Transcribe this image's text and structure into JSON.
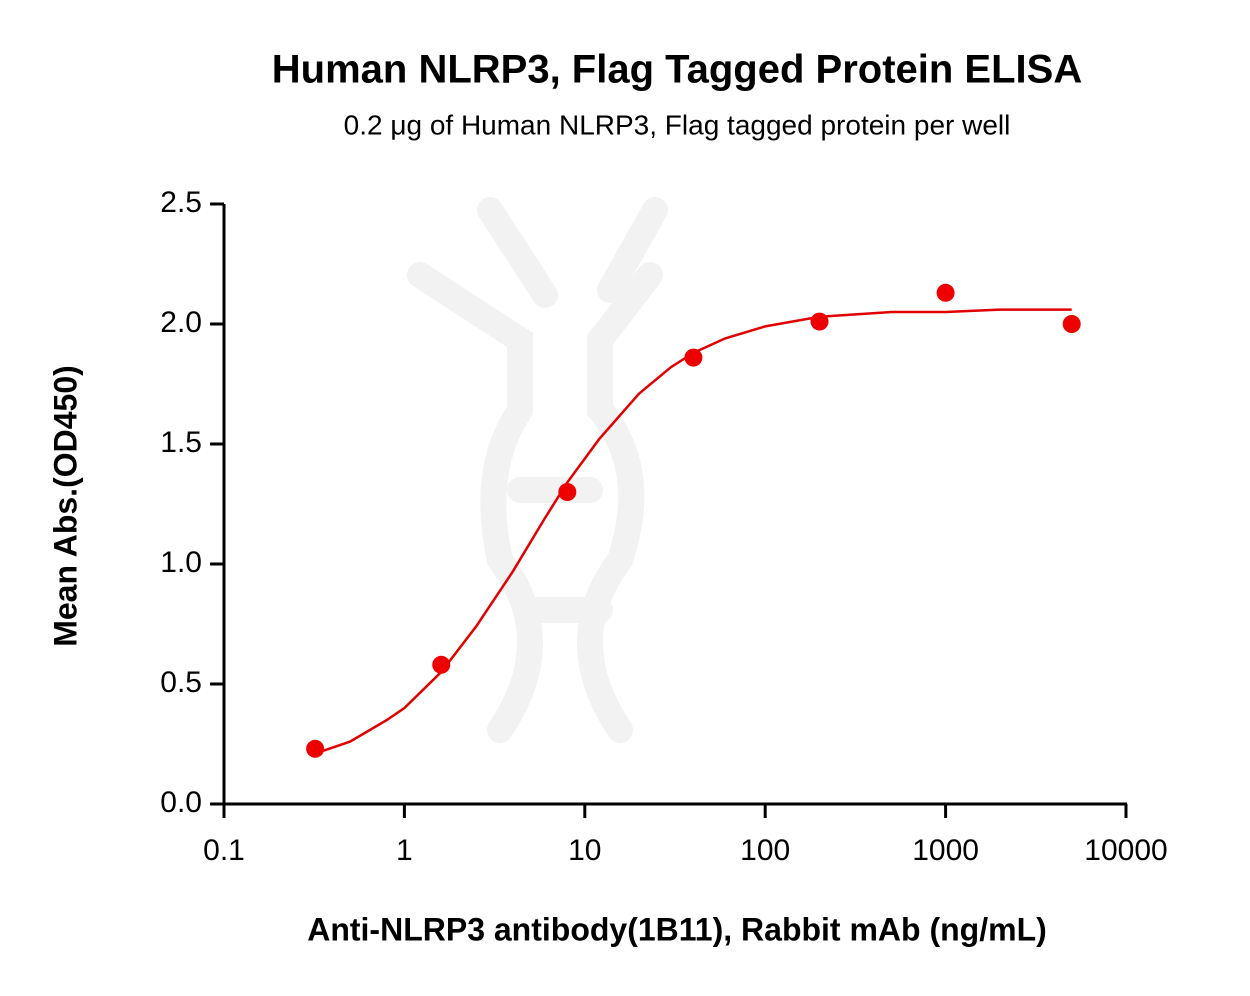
{
  "chart_data": {
    "type": "scatter",
    "title": "Human NLRP3, Flag Tagged Protein ELISA",
    "subtitle": "0.2 μg of Human NLRP3, Flag tagged protein per well",
    "x_label": "Anti-NLRP3 antibody(1B11), Rabbit mAb (ng/mL)",
    "y_label": "Mean Abs.(OD450)",
    "x_scale": "log",
    "xlim": [
      0.1,
      10000
    ],
    "xticks": [
      0.1,
      1,
      10,
      100,
      1000,
      10000
    ],
    "ylim": [
      0,
      2.5
    ],
    "yticks": [
      {
        "value": 0,
        "label": "0.0"
      },
      0.5,
      {
        "value": 1,
        "label": "1.0"
      },
      1.5,
      {
        "value": 2,
        "label": "2.0"
      },
      2.5
    ],
    "series": [
      {
        "type": "scatter",
        "color": "#ee0000",
        "x": [
          0.32,
          1.6,
          8,
          40,
          200,
          1000,
          5000
        ],
        "values": [
          0.23,
          0.58,
          1.3,
          1.86,
          2.01,
          2.13,
          2.0
        ]
      },
      {
        "type": "line",
        "color": "#e00000",
        "x": [
          0.32,
          0.5,
          0.8,
          1,
          1.6,
          2.5,
          4,
          6,
          8,
          12,
          20,
          30,
          40,
          60,
          100,
          200,
          500,
          1000,
          2000,
          5000
        ],
        "values": [
          0.21,
          0.26,
          0.35,
          0.4,
          0.55,
          0.74,
          0.97,
          1.19,
          1.34,
          1.52,
          1.71,
          1.82,
          1.88,
          1.94,
          1.99,
          2.03,
          2.05,
          2.05,
          2.06,
          2.06
        ]
      }
    ]
  }
}
